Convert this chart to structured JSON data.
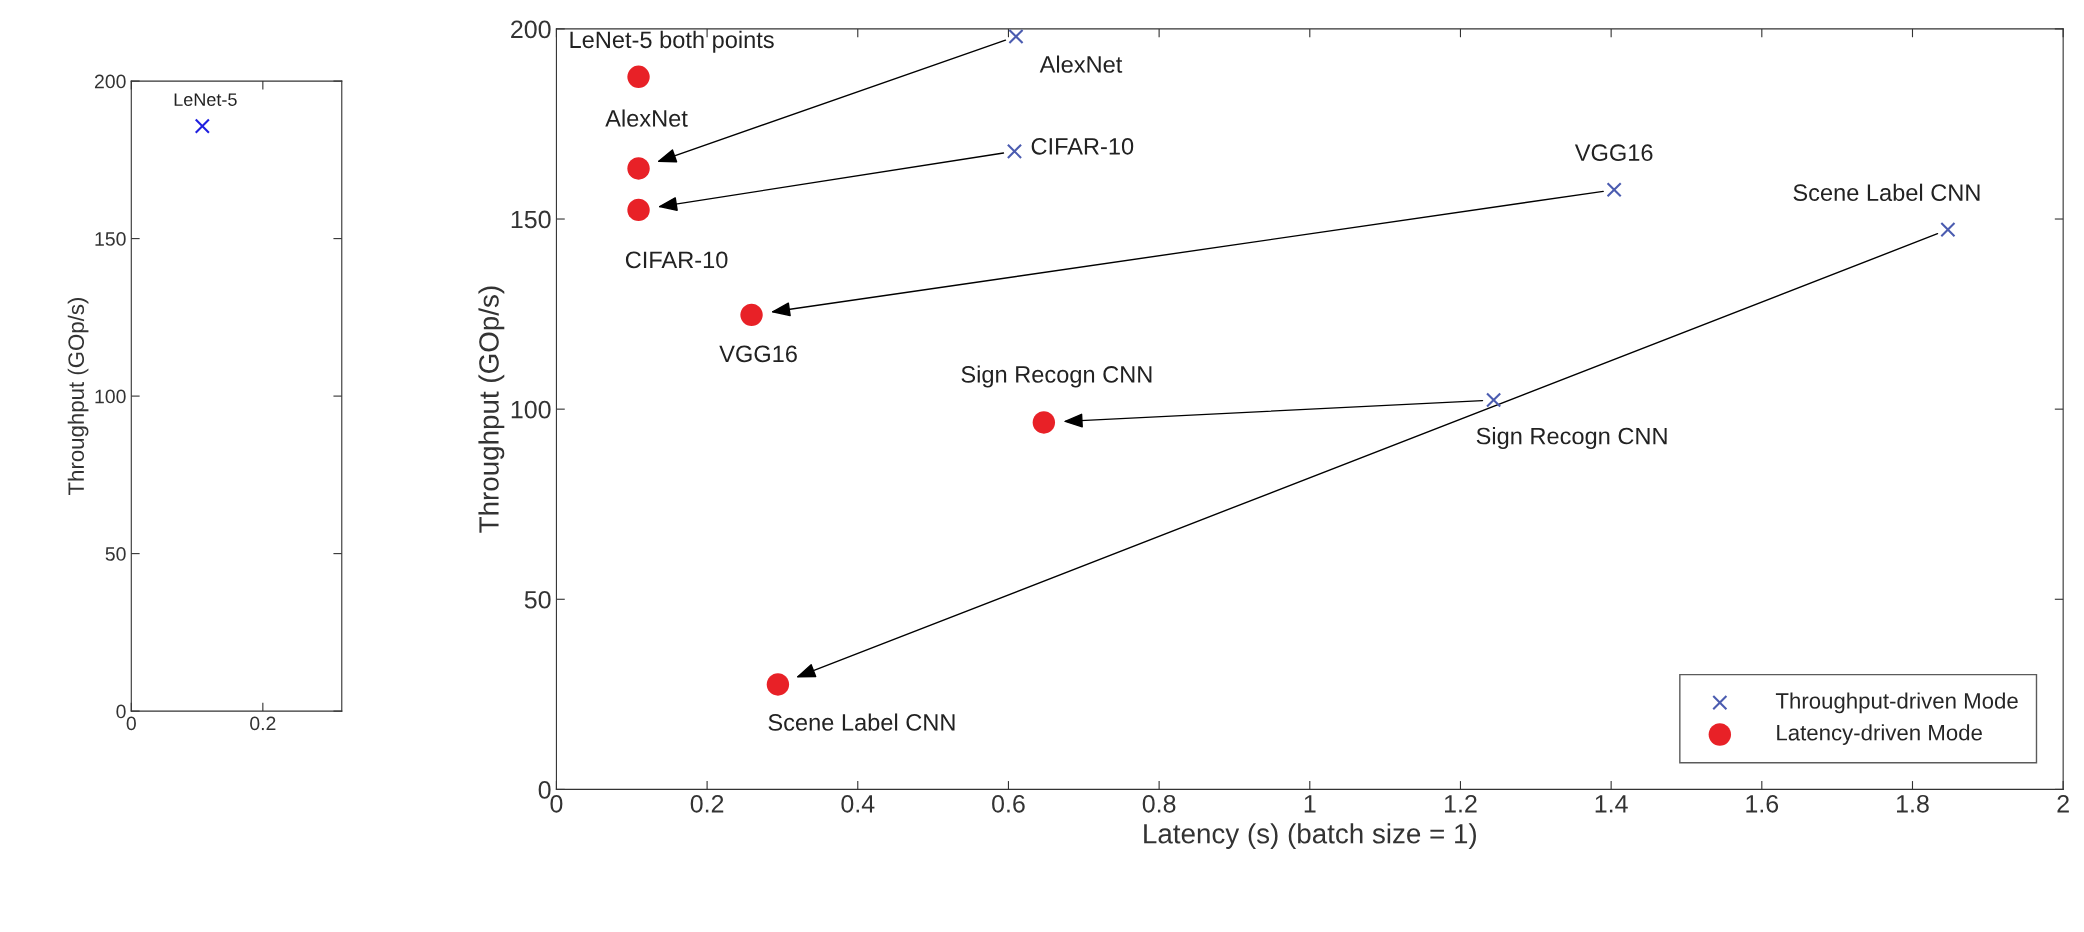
{
  "chart_data": [
    {
      "type": "scatter",
      "ylabel": "Throughput (GOp/s)",
      "xlim": [
        0,
        0.32
      ],
      "xticks": [
        0,
        0.2
      ],
      "ylim": [
        0,
        200
      ],
      "yticks": [
        0,
        50,
        100,
        150,
        200
      ],
      "grid": false,
      "legend": false,
      "series": [
        {
          "color": "#2020e0",
          "marker": "cross",
          "x": [
            0.108
          ],
          "values": [
            185.7
          ]
        }
      ],
      "annotations": [
        {
          "text": "LeNet-5",
          "x": 0.108,
          "y": 185.7
        }
      ]
    },
    {
      "type": "scatter",
      "xlabel": "Latency (s) (batch size = 1)",
      "ylabel": "Throughput (GOp/s)",
      "xlim": [
        0,
        2
      ],
      "xticks": [
        0,
        0.2,
        0.4,
        0.6,
        0.8,
        1,
        1.2,
        1.4,
        1.6,
        1.8,
        2
      ],
      "ylim": [
        0,
        200
      ],
      "yticks": [
        0,
        50,
        100,
        150,
        200
      ],
      "grid": false,
      "legend": "bottom right",
      "series": [
        {
          "name": "Throughput-driven Mode",
          "color": "#4b5cb0",
          "marker": "cross",
          "x": [
            null,
            0.61,
            0.608,
            1.404,
            1.244,
            1.847
          ],
          "values": [
            null,
            198,
            167.8,
            157.7,
            102.4,
            147.2
          ]
        },
        {
          "name": "Latency-driven Mode",
          "color": "#e82127",
          "marker": "circle",
          "x": [
            0.109,
            0.109,
            0.109,
            0.259,
            0.647,
            0.294
          ],
          "values": [
            187.4,
            163.3,
            152.4,
            124.8,
            96.5,
            27.6
          ]
        }
      ],
      "annotations": [
        {
          "text": "LeNet-5 both points",
          "x": 0.109,
          "y": 187.4
        },
        {
          "text": "AlexNet",
          "x": 0.61,
          "y": 198
        },
        {
          "text": "AlexNet",
          "x": 0.109,
          "y": 163.3
        },
        {
          "text": "CIFAR-10",
          "x": 0.608,
          "y": 167.8
        },
        {
          "text": "CIFAR-10",
          "x": 0.109,
          "y": 152.4
        },
        {
          "text": "VGG16",
          "x": 0.259,
          "y": 124.8
        },
        {
          "text": "VGG16",
          "x": 1.404,
          "y": 157.7
        },
        {
          "text": "Scene Label CNN",
          "x": 1.847,
          "y": 147.2
        },
        {
          "text": "Sign Recogn CNN",
          "x": 0.647,
          "y": 96.5
        },
        {
          "text": "Sign Recogn CNN",
          "x": 1.244,
          "y": 102.4
        },
        {
          "text": "Scene Label CNN",
          "x": 0.294,
          "y": 27.6
        }
      ]
    }
  ]
}
